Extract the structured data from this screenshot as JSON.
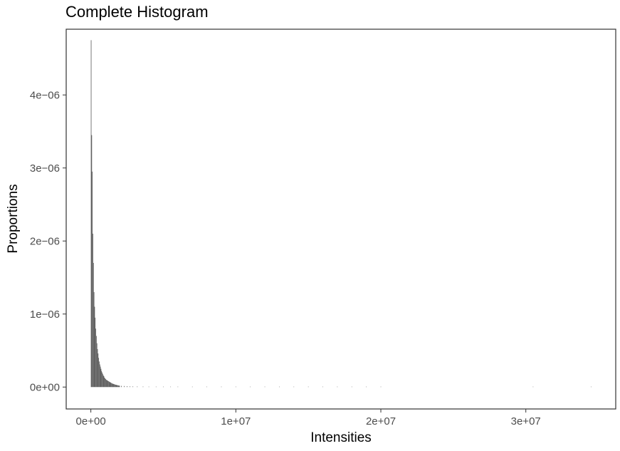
{
  "chart_data": {
    "type": "bar",
    "title": "Complete Histogram",
    "xlabel": "Intensities",
    "ylabel": "Proportions",
    "xlim": [
      -1700000,
      36200000
    ],
    "ylim": [
      -3e-07,
      4.9e-06
    ],
    "x_ticks": [
      {
        "value": 0,
        "label": "0e+00"
      },
      {
        "value": 10000000,
        "label": "1e+07"
      },
      {
        "value": 20000000,
        "label": "2e+07"
      },
      {
        "value": 30000000,
        "label": "3e+07"
      }
    ],
    "y_ticks": [
      {
        "value": 0,
        "label": "0e+00"
      },
      {
        "value": 1e-06,
        "label": "1e-06"
      },
      {
        "value": 2e-06,
        "label": "2e-06"
      },
      {
        "value": 3e-06,
        "label": "3e-06"
      },
      {
        "value": 4e-06,
        "label": "4e-06"
      }
    ],
    "grid": false,
    "bin_width": 40000,
    "bar_color": "#595959",
    "series": [
      {
        "x": [
          20000,
          60000,
          100000,
          140000,
          180000,
          220000,
          260000,
          300000,
          340000,
          380000,
          420000,
          460000,
          500000,
          540000,
          580000,
          620000,
          660000,
          700000,
          740000,
          780000,
          820000,
          860000,
          900000,
          940000,
          980000,
          1020000,
          1060000,
          1100000,
          1140000,
          1180000,
          1220000,
          1260000,
          1300000,
          1340000,
          1380000,
          1420000,
          1460000,
          1500000,
          1540000,
          1580000,
          1620000,
          1660000,
          1700000,
          1740000,
          1780000,
          1820000,
          1860000,
          1900000,
          1940000,
          1980000,
          2100000,
          2300000,
          2500000,
          2700000,
          2900000,
          3200000,
          3600000,
          4000000,
          4500000,
          5000000,
          5500000,
          6000000,
          7000000,
          8000000,
          9000000,
          10000000,
          11000000,
          12000000,
          13000000,
          14000000,
          15000000,
          16000000,
          17000000,
          18000000,
          19000000,
          20000000,
          30500000,
          34500000
        ],
        "values": [
          4.75e-06,
          3.45e-06,
          2.95e-06,
          2.1e-06,
          1.7e-06,
          1.3e-06,
          1.1e-06,
          9.5e-07,
          8e-07,
          7e-07,
          6e-07,
          5.2e-07,
          4.6e-07,
          4e-07,
          3.5e-07,
          3.1e-07,
          2.8e-07,
          2.5e-07,
          2.2e-07,
          2e-07,
          1.8e-07,
          1.6e-07,
          1.5e-07,
          1.3e-07,
          1.2e-07,
          1.1e-07,
          1e-07,
          9.5e-08,
          9e-08,
          8.5e-08,
          8e-08,
          7.5e-08,
          7e-08,
          6.5e-08,
          6e-08,
          5.5e-08,
          5e-08,
          4.7e-08,
          4.4e-08,
          4.1e-08,
          3.8e-08,
          3.5e-08,
          3.2e-08,
          3e-08,
          2.8e-08,
          2.6e-08,
          2.4e-08,
          2.2e-08,
          2e-08,
          1.8e-08,
          1.6e-08,
          1.4e-08,
          1.2e-08,
          1e-08,
          9e-09,
          8e-09,
          7e-09,
          6e-09,
          5e-09,
          4e-09,
          3.5e-09,
          3e-09,
          2.5e-09,
          2e-09,
          1.8e-09,
          1.6e-09,
          1.4e-09,
          1.2e-09,
          1e-09,
          1e-09,
          9e-10,
          8e-10,
          8e-10,
          7e-10,
          7e-10,
          6e-10,
          5e-10,
          5e-10
        ]
      }
    ]
  }
}
